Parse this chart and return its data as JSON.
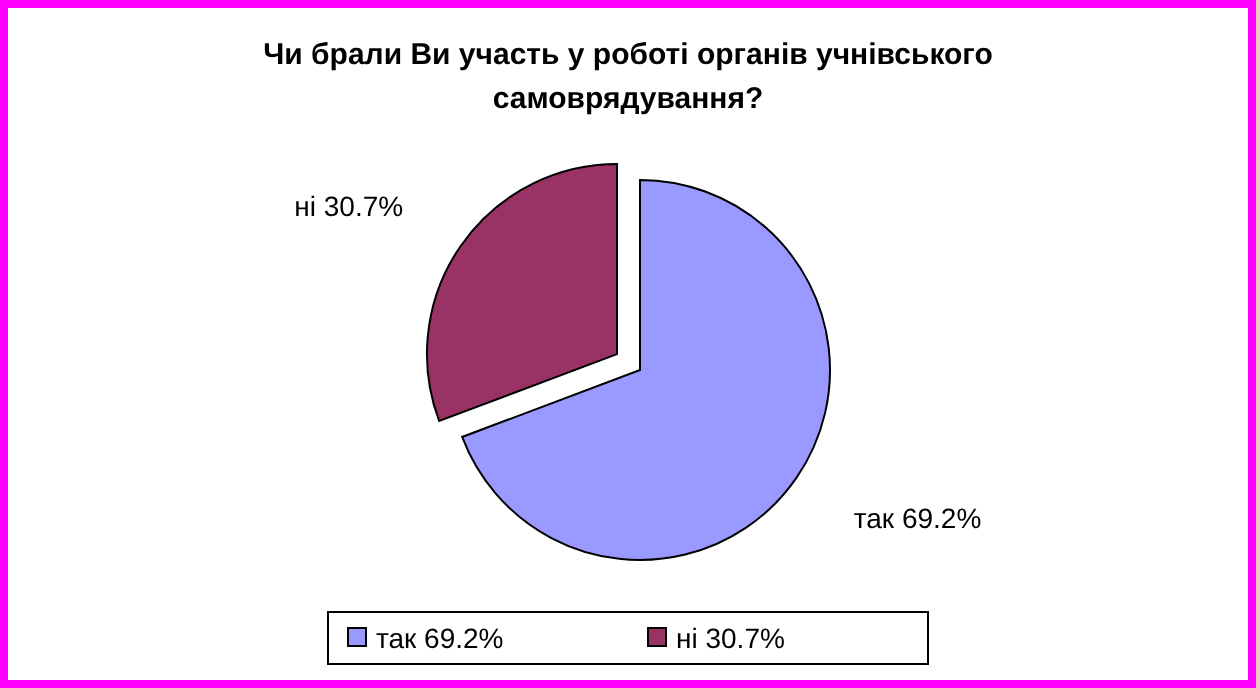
{
  "chart_data": {
    "type": "pie",
    "title": "Чи брали Ви участь у роботі органів учнівського самоврядування?",
    "categories": [
      "так",
      "ні"
    ],
    "values": [
      69.2,
      30.7
    ],
    "colors": [
      "#9999ff",
      "#993366"
    ],
    "value_labels": [
      "69.2%",
      "30.7%"
    ],
    "legend": "bottom"
  }
}
